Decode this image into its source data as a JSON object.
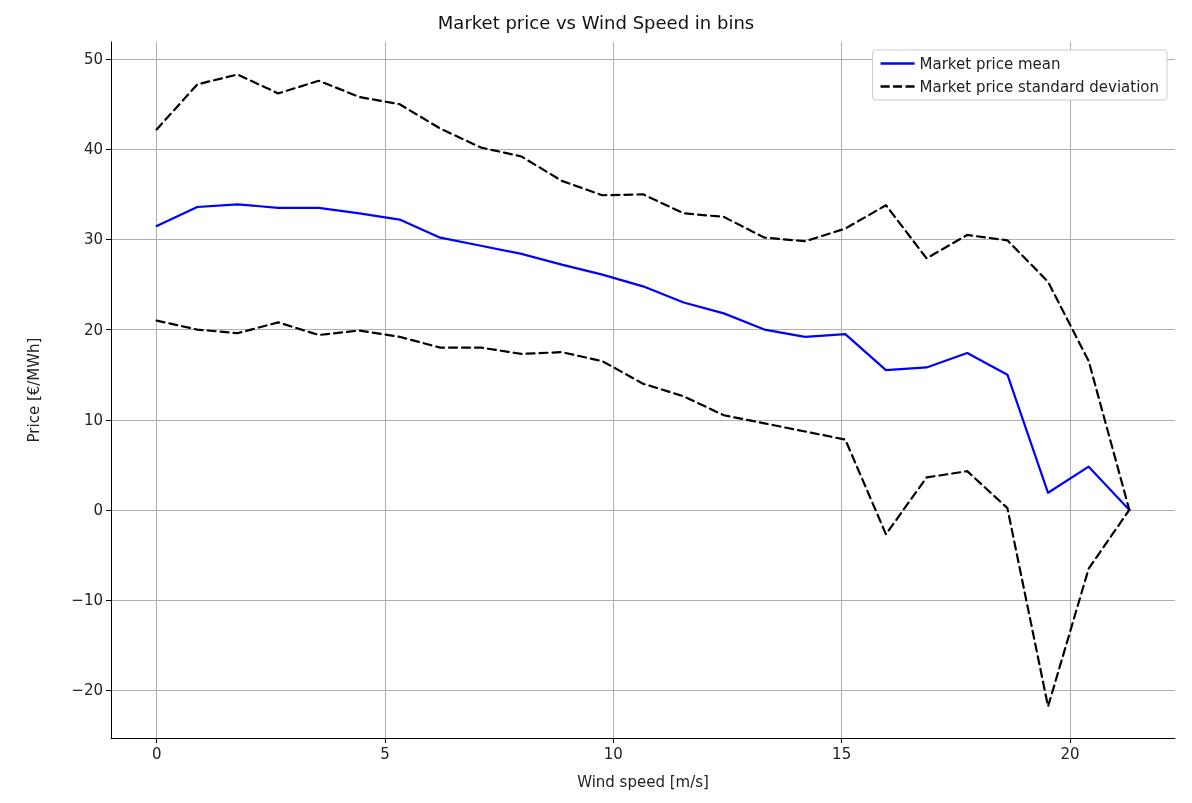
{
  "chart_data": {
    "type": "line",
    "title": "Market price vs Wind Speed in bins",
    "xlabel": "Wind speed [m/s]",
    "ylabel": "Price [€/MWh]",
    "x": [
      0,
      0.89,
      1.77,
      2.66,
      3.55,
      4.44,
      5.32,
      6.21,
      7.1,
      7.99,
      8.87,
      9.76,
      10.65,
      11.54,
      12.42,
      13.31,
      14.2,
      15.08,
      15.97,
      16.86,
      17.75,
      18.63,
      19.52,
      20.41,
      21.3
    ],
    "series": [
      {
        "name": "Market price mean",
        "color": "#0000ff",
        "line_style": "solid",
        "values": [
          31.5,
          33.6,
          33.9,
          33.5,
          33.5,
          32.9,
          32.2,
          30.2,
          29.3,
          28.4,
          27.2,
          26.1,
          24.8,
          23.0,
          21.8,
          20.0,
          19.2,
          19.5,
          15.5,
          15.8,
          17.4,
          15.0,
          1.9,
          4.8,
          0
        ]
      },
      {
        "name": "Market price standard deviation",
        "color": "#000000",
        "line_style": "dashed",
        "values": [
          42.2,
          47.2,
          48.3,
          46.2,
          47.6,
          45.8,
          45.0,
          42.3,
          40.2,
          39.2,
          36.5,
          34.9,
          35.0,
          32.9,
          32.5,
          30.2,
          29.8,
          31.2,
          33.8,
          27.9,
          30.5,
          29.9,
          25.3,
          16.5,
          0
        ]
      },
      {
        "color": "#000000",
        "line_style": "dashed",
        "values": [
          21.0,
          20.0,
          19.6,
          20.8,
          19.4,
          19.9,
          19.2,
          18.0,
          18.0,
          17.3,
          17.5,
          16.5,
          14.0,
          12.6,
          10.5,
          9.6,
          8.7,
          7.8,
          -2.7,
          3.6,
          4.3,
          0.2,
          -21.8,
          -6.5,
          0
        ]
      }
    ],
    "xlim": [
      -1,
      22.3
    ],
    "xticks": [
      0,
      5,
      10,
      15,
      20
    ],
    "ylim": [
      -25.3,
      51.9
    ],
    "yticks": [
      -20,
      -10,
      0,
      10,
      20,
      30,
      40,
      50
    ],
    "grid": true,
    "legend": "top right",
    "marker": "none"
  }
}
